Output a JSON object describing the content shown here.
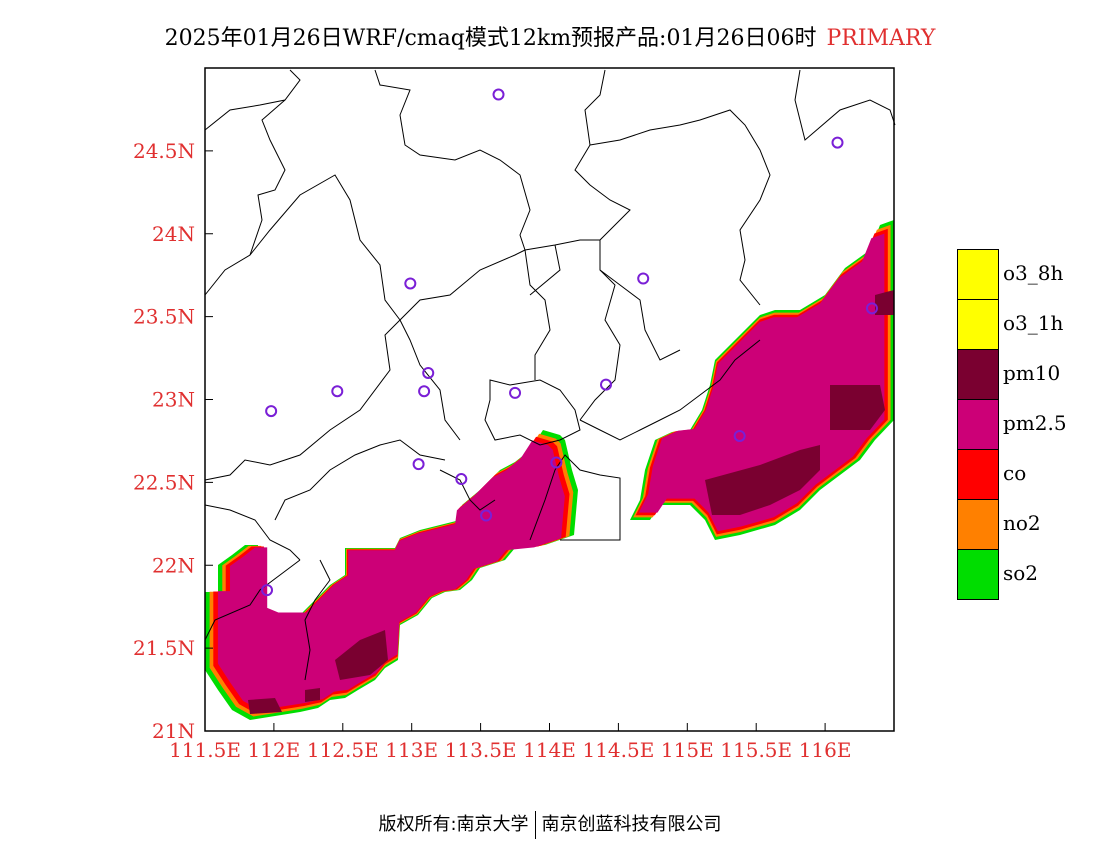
{
  "title": {
    "main": "2025年01月26日WRF/cmaq模式12km预报产品:01月26日06时",
    "tag": "PRIMARY"
  },
  "map": {
    "lon_range": [
      111.5,
      116.5
    ],
    "lat_range": [
      21.0,
      25.0
    ],
    "x_tick_labels": [
      "111.5E",
      "112E",
      "112.5E",
      "113E",
      "113.5E",
      "114E",
      "114.5E",
      "115E",
      "115.5E",
      "116E"
    ],
    "y_tick_labels": [
      "21N",
      "21.5N",
      "22N",
      "22.5N",
      "23N",
      "23.5N",
      "24N",
      "24.5N"
    ],
    "tick_color": "#e03030",
    "station_color": "#7a1fd6",
    "stations": [
      {
        "lon": 113.63,
        "lat": 24.84
      },
      {
        "lon": 116.09,
        "lat": 24.55
      },
      {
        "lon": 112.99,
        "lat": 23.7
      },
      {
        "lon": 114.68,
        "lat": 23.73
      },
      {
        "lon": 116.34,
        "lat": 23.55
      },
      {
        "lon": 113.12,
        "lat": 23.16
      },
      {
        "lon": 112.46,
        "lat": 23.05
      },
      {
        "lon": 113.09,
        "lat": 23.05
      },
      {
        "lon": 113.75,
        "lat": 23.04
      },
      {
        "lon": 114.41,
        "lat": 23.09
      },
      {
        "lon": 111.98,
        "lat": 22.93
      },
      {
        "lon": 115.38,
        "lat": 22.78
      },
      {
        "lon": 113.05,
        "lat": 22.61
      },
      {
        "lon": 114.05,
        "lat": 22.62
      },
      {
        "lon": 113.36,
        "lat": 22.52
      },
      {
        "lon": 113.54,
        "lat": 22.3
      },
      {
        "lon": 111.95,
        "lat": 21.85
      }
    ]
  },
  "legend": {
    "items": [
      {
        "label": "o3_8h",
        "color": "#ffff00"
      },
      {
        "label": "o3_1h",
        "color": "#ffff00"
      },
      {
        "label": "pm10",
        "color": "#7a0030"
      },
      {
        "label": "pm2.5",
        "color": "#cc0077"
      },
      {
        "label": "co",
        "color": "#ff0000"
      },
      {
        "label": "no2",
        "color": "#ff8000"
      },
      {
        "label": "so2",
        "color": "#00dd00"
      }
    ]
  },
  "footer": {
    "left": "版权所有:南京大学",
    "right": "南京创蓝科技有限公司"
  }
}
